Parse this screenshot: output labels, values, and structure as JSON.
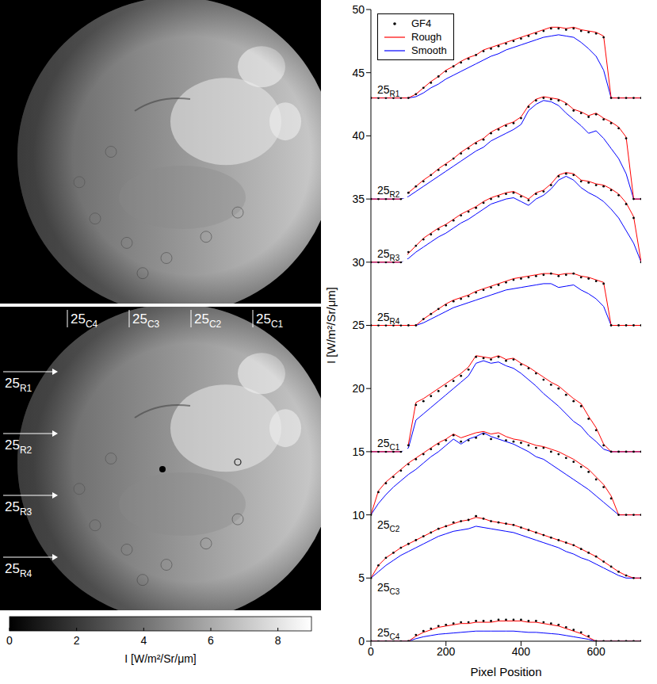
{
  "chart_data": {
    "type": "line",
    "x_label": "Pixel Position",
    "y_label": "I [W/m²/Sr/μm]",
    "xlim": [
      0,
      720
    ],
    "xticks": [
      0,
      200,
      400,
      600
    ],
    "ylim": [
      0,
      50
    ],
    "yticks": [
      0,
      5,
      10,
      15,
      20,
      25,
      30,
      35,
      40,
      45,
      50
    ],
    "legend": "top left",
    "x": [
      0,
      20,
      40,
      60,
      80,
      100,
      120,
      140,
      160,
      180,
      200,
      220,
      240,
      260,
      280,
      300,
      320,
      340,
      360,
      380,
      400,
      420,
      440,
      460,
      480,
      500,
      520,
      540,
      560,
      580,
      600,
      620,
      640,
      660,
      680,
      700,
      720
    ],
    "series": [
      {
        "name": "GF4",
        "color": "#000000",
        "marker": "dot",
        "line_style": "none"
      },
      {
        "name": "Rough",
        "color": "#ff0000",
        "line_style": "solid"
      },
      {
        "name": "Smooth",
        "color": "#0000ff",
        "line_style": "solid"
      }
    ],
    "profiles": [
      {
        "label": "25",
        "subscript": "R1",
        "values": [
          [
            43,
            43,
            43,
            43,
            43,
            43,
            43.3,
            43.8,
            44.2,
            44.7,
            45.1,
            45.5,
            45.8,
            46.1,
            46.4,
            46.7,
            46.9,
            47.1,
            47.3,
            47.5,
            47.7,
            47.9,
            48.1,
            48.3,
            48.5,
            48.5,
            48.4,
            48.5,
            48.3,
            48.2,
            48.1,
            47.8,
            43,
            43,
            43,
            43,
            43
          ],
          [
            43,
            43,
            43,
            43,
            43,
            43,
            43.3,
            43.8,
            44.3,
            44.7,
            45.2,
            45.5,
            45.9,
            46.2,
            46.4,
            46.8,
            47,
            47.2,
            47.4,
            47.6,
            47.8,
            48,
            48.2,
            48.4,
            48.6,
            48.6,
            48.5,
            48.6,
            48.4,
            48.3,
            48.2,
            47.9,
            43,
            43,
            43,
            43,
            43
          ],
          [
            43,
            43,
            43,
            43,
            43,
            43,
            43.1,
            43.4,
            43.8,
            44.1,
            44.5,
            44.8,
            45.1,
            45.4,
            45.7,
            46,
            46.3,
            46.5,
            46.8,
            47,
            47.2,
            47.4,
            47.6,
            47.8,
            47.9,
            48,
            47.9,
            47.8,
            47.4,
            46.9,
            46.3,
            45.2,
            43,
            43,
            43,
            43,
            43
          ]
        ]
      },
      {
        "label": "25",
        "subscript": "R2",
        "values": [
          [
            35,
            35,
            35,
            35,
            35,
            35.5,
            36,
            36.4,
            36.9,
            37.3,
            37.7,
            38.2,
            38.6,
            39,
            39.4,
            39.7,
            40.2,
            40.5,
            40.8,
            41,
            41.4,
            42.3,
            42.8,
            43,
            42.9,
            42.8,
            42.5,
            42,
            41.8,
            41.5,
            41.7,
            41.3,
            41,
            40.6,
            39.8,
            35,
            35
          ],
          [
            35,
            35,
            35,
            35,
            35,
            35.5,
            36,
            36.5,
            36.9,
            37.4,
            37.8,
            38.2,
            38.7,
            39.1,
            39.5,
            39.8,
            40.3,
            40.6,
            40.9,
            41.1,
            41.5,
            42.4,
            42.9,
            43.1,
            43,
            42.9,
            42.6,
            42.1,
            41.9,
            41.6,
            41.8,
            41.4,
            41.1,
            40.7,
            39.9,
            35,
            35
          ],
          [
            35,
            35,
            35,
            35,
            35,
            35.2,
            35.6,
            36,
            36.4,
            36.8,
            37.2,
            37.6,
            38,
            38.4,
            38.8,
            39.1,
            39.6,
            39.9,
            40.2,
            40.5,
            40.9,
            42,
            42.5,
            42.8,
            42.7,
            42.4,
            41.8,
            41.3,
            40.8,
            40.2,
            40.4,
            39.8,
            39,
            38.2,
            37,
            35,
            35
          ]
        ]
      },
      {
        "label": "25",
        "subscript": "R3",
        "values": [
          [
            30,
            30,
            30,
            30,
            30,
            30.8,
            31.3,
            31.8,
            32.2,
            32.6,
            32.9,
            33.3,
            33.7,
            34,
            34.3,
            34.7,
            35,
            35.2,
            35.4,
            35.5,
            35.2,
            34.9,
            35.4,
            35.6,
            36.1,
            36.8,
            37,
            36.9,
            36.4,
            36.3,
            36.1,
            36,
            35.7,
            35.3,
            34.6,
            33.5,
            30
          ],
          [
            30,
            30,
            30,
            30,
            30,
            30.7,
            31.3,
            31.9,
            32.3,
            32.7,
            33,
            33.4,
            33.8,
            34.1,
            34.4,
            34.8,
            35.1,
            35.3,
            35.5,
            35.6,
            35.3,
            35,
            35.5,
            35.7,
            36.2,
            36.9,
            37.1,
            37,
            36.5,
            36.4,
            36.2,
            36.1,
            35.8,
            35.4,
            34.7,
            33.6,
            30
          ],
          [
            30,
            30,
            30,
            30,
            30,
            30.3,
            30.8,
            31.2,
            31.6,
            32,
            32.3,
            32.7,
            33.1,
            33.4,
            33.8,
            34.2,
            34.6,
            34.8,
            35,
            35.1,
            34.8,
            34.5,
            35,
            35.3,
            35.8,
            36.5,
            36.8,
            36.5,
            35.9,
            35.5,
            35.2,
            34.8,
            34.2,
            33.5,
            32.5,
            31.5,
            30
          ]
        ]
      },
      {
        "label": "25",
        "subscript": "R4",
        "values": [
          [
            25,
            25,
            25,
            25,
            25,
            25,
            25,
            25.5,
            25.9,
            26.3,
            26.6,
            26.9,
            27.1,
            27.3,
            27.6,
            27.8,
            28,
            28.2,
            28.4,
            28.6,
            28.7,
            28.8,
            28.9,
            29,
            29.1,
            28.9,
            29,
            29.1,
            28.8,
            28.7,
            28.5,
            28.3,
            25,
            25,
            25,
            25,
            25
          ],
          [
            25,
            25,
            25,
            25,
            25,
            25,
            25,
            25.5,
            25.9,
            26.3,
            26.7,
            27,
            27.2,
            27.4,
            27.7,
            27.9,
            28.1,
            28.3,
            28.5,
            28.7,
            28.8,
            28.9,
            29,
            29.1,
            29.1,
            29,
            29.1,
            29.1,
            28.9,
            28.8,
            28.6,
            28.4,
            25,
            25,
            25,
            25,
            25
          ],
          [
            25,
            25,
            25,
            25,
            25,
            25,
            25,
            25.2,
            25.5,
            25.8,
            26.1,
            26.4,
            26.6,
            26.8,
            27,
            27.2,
            27.4,
            27.6,
            27.8,
            27.9,
            28,
            28.1,
            28.2,
            28.3,
            28.3,
            28,
            28.1,
            28.2,
            27.8,
            27.5,
            27.1,
            26.5,
            25,
            25,
            25,
            25,
            25
          ]
        ]
      },
      {
        "label": "25",
        "subscript": "C1",
        "values": [
          [
            15,
            15,
            15,
            15,
            15,
            15.5,
            18.7,
            19,
            19.4,
            19.8,
            20.2,
            20.6,
            21,
            21.5,
            22.5,
            22.4,
            22.3,
            22.5,
            22.2,
            22.3,
            21.9,
            21.6,
            21.2,
            20.7,
            20.3,
            20,
            19.5,
            19,
            18.6,
            17.6,
            16.7,
            15.5,
            15,
            15,
            15,
            15,
            15
          ],
          [
            15,
            15,
            15,
            15,
            15,
            15.6,
            18.9,
            19.2,
            19.6,
            20,
            20.4,
            20.8,
            21.2,
            21.7,
            22.6,
            22.5,
            22.4,
            22.6,
            22.3,
            22.4,
            22,
            21.7,
            21.3,
            20.9,
            20.5,
            20.2,
            19.7,
            19.2,
            18.8,
            17.8,
            16.9,
            15.6,
            15,
            15,
            15,
            15,
            15
          ],
          [
            15,
            15,
            15,
            15,
            15,
            15.3,
            17.5,
            18,
            18.5,
            19,
            19.5,
            20,
            20.5,
            21,
            22,
            22.2,
            22,
            22.1,
            21.8,
            21.6,
            21.2,
            20.7,
            20.2,
            19.6,
            19.1,
            18.6,
            18,
            17.4,
            17,
            16.3,
            15.8,
            15.2,
            15,
            15,
            15,
            15,
            15
          ]
        ]
      },
      {
        "label": "25",
        "subscript": "C2",
        "values": [
          [
            10,
            11.8,
            12.5,
            13,
            13.5,
            14,
            14.4,
            14.8,
            15.2,
            15.6,
            15.9,
            16.3,
            15.8,
            15.9,
            16.1,
            16.4,
            16,
            16.2,
            15.9,
            15.8,
            15.7,
            15.5,
            15.3,
            15.3,
            15,
            14.8,
            14.5,
            14.2,
            13.8,
            13.4,
            12.8,
            12.2,
            11.3,
            10,
            10,
            10,
            10
          ],
          [
            10,
            11.9,
            12.6,
            13.1,
            13.6,
            14.1,
            14.5,
            14.9,
            15.3,
            15.7,
            16,
            16.4,
            16.1,
            16.3,
            16.5,
            16.6,
            16.4,
            16.5,
            16.2,
            16,
            15.9,
            15.7,
            15.5,
            15.4,
            15.2,
            15,
            14.7,
            14.4,
            14,
            13.6,
            13,
            12.4,
            11.5,
            10,
            10,
            10,
            10
          ],
          [
            10,
            10.9,
            11.6,
            12.2,
            12.7,
            13.2,
            13.6,
            14.1,
            14.6,
            15,
            15.5,
            16,
            15.6,
            16,
            16.2,
            16.5,
            16.2,
            16,
            15.8,
            15.6,
            15.3,
            15,
            14.6,
            14.4,
            14,
            13.6,
            13.2,
            12.8,
            12.4,
            12,
            11.5,
            11,
            10.5,
            10,
            10,
            10,
            10
          ]
        ]
      },
      {
        "label": "25",
        "subscript": "C3",
        "values": [
          [
            5,
            6,
            6.6,
            7,
            7.4,
            7.7,
            8,
            8.3,
            8.6,
            8.9,
            9.1,
            9.4,
            9.5,
            9.6,
            9.9,
            9.7,
            9.5,
            9.4,
            9.3,
            9.2,
            9,
            8.8,
            8.6,
            8.4,
            8.2,
            8,
            7.8,
            7.6,
            7.3,
            7,
            6.7,
            6.3,
            5.9,
            5.5,
            5.2,
            5,
            5
          ],
          [
            5,
            6,
            6.6,
            7,
            7.4,
            7.7,
            8,
            8.3,
            8.6,
            8.9,
            9.1,
            9.3,
            9.5,
            9.6,
            9.8,
            9.7,
            9.5,
            9.4,
            9.3,
            9.2,
            9,
            8.8,
            8.6,
            8.4,
            8.2,
            8,
            7.8,
            7.6,
            7.3,
            7,
            6.7,
            6.3,
            5.9,
            5.5,
            5.2,
            5,
            5
          ],
          [
            5,
            5.5,
            6,
            6.4,
            6.8,
            7.1,
            7.4,
            7.7,
            8,
            8.3,
            8.5,
            8.7,
            8.8,
            8.9,
            9.1,
            9,
            8.9,
            8.8,
            8.7,
            8.6,
            8.4,
            8.2,
            8,
            7.8,
            7.6,
            7.4,
            7.1,
            6.9,
            6.6,
            6.4,
            6.1,
            5.8,
            5.5,
            5.2,
            5,
            5,
            5
          ]
        ]
      },
      {
        "label": "25",
        "subscript": "C4",
        "values": [
          [
            0,
            0,
            0,
            0,
            0,
            0,
            0.5,
            0.8,
            1,
            1.2,
            1.3,
            1.4,
            1.5,
            1.5,
            1.6,
            1.6,
            1.6,
            1.7,
            1.7,
            1.7,
            1.7,
            1.6,
            1.6,
            1.5,
            1.4,
            1.3,
            1.1,
            0.9,
            0.7,
            0.4,
            0,
            0,
            0,
            0,
            0,
            0,
            0
          ],
          [
            0,
            0,
            0,
            0,
            0,
            0,
            0.4,
            0.7,
            0.9,
            1.1,
            1.2,
            1.3,
            1.4,
            1.4,
            1.5,
            1.5,
            1.5,
            1.6,
            1.6,
            1.6,
            1.6,
            1.5,
            1.5,
            1.4,
            1.3,
            1.2,
            1,
            0.8,
            0.6,
            0.3,
            0,
            0,
            0,
            0,
            0,
            0,
            0
          ],
          [
            0,
            0,
            0,
            0,
            0,
            0,
            0.2,
            0.35,
            0.45,
            0.55,
            0.6,
            0.65,
            0.7,
            0.75,
            0.8,
            0.8,
            0.8,
            0.8,
            0.8,
            0.8,
            0.75,
            0.7,
            0.7,
            0.65,
            0.6,
            0.55,
            0.45,
            0.35,
            0.25,
            0.15,
            0,
            0,
            0,
            0,
            0,
            0,
            0
          ]
        ]
      }
    ]
  },
  "image_panel": {
    "column_labels": [
      {
        "label": "25",
        "subscript": "C4"
      },
      {
        "label": "25",
        "subscript": "C3"
      },
      {
        "label": "25",
        "subscript": "C2"
      },
      {
        "label": "25",
        "subscript": "C1"
      }
    ],
    "row_labels": [
      {
        "label": "25",
        "subscript": "R1"
      },
      {
        "label": "25",
        "subscript": "R2"
      },
      {
        "label": "25",
        "subscript": "R3"
      },
      {
        "label": "25",
        "subscript": "R4"
      }
    ],
    "colorbar": {
      "range": [
        0,
        9
      ],
      "ticks": [
        0,
        2,
        4,
        6,
        8
      ],
      "label": "I [W/m²/Sr/μm]"
    }
  }
}
